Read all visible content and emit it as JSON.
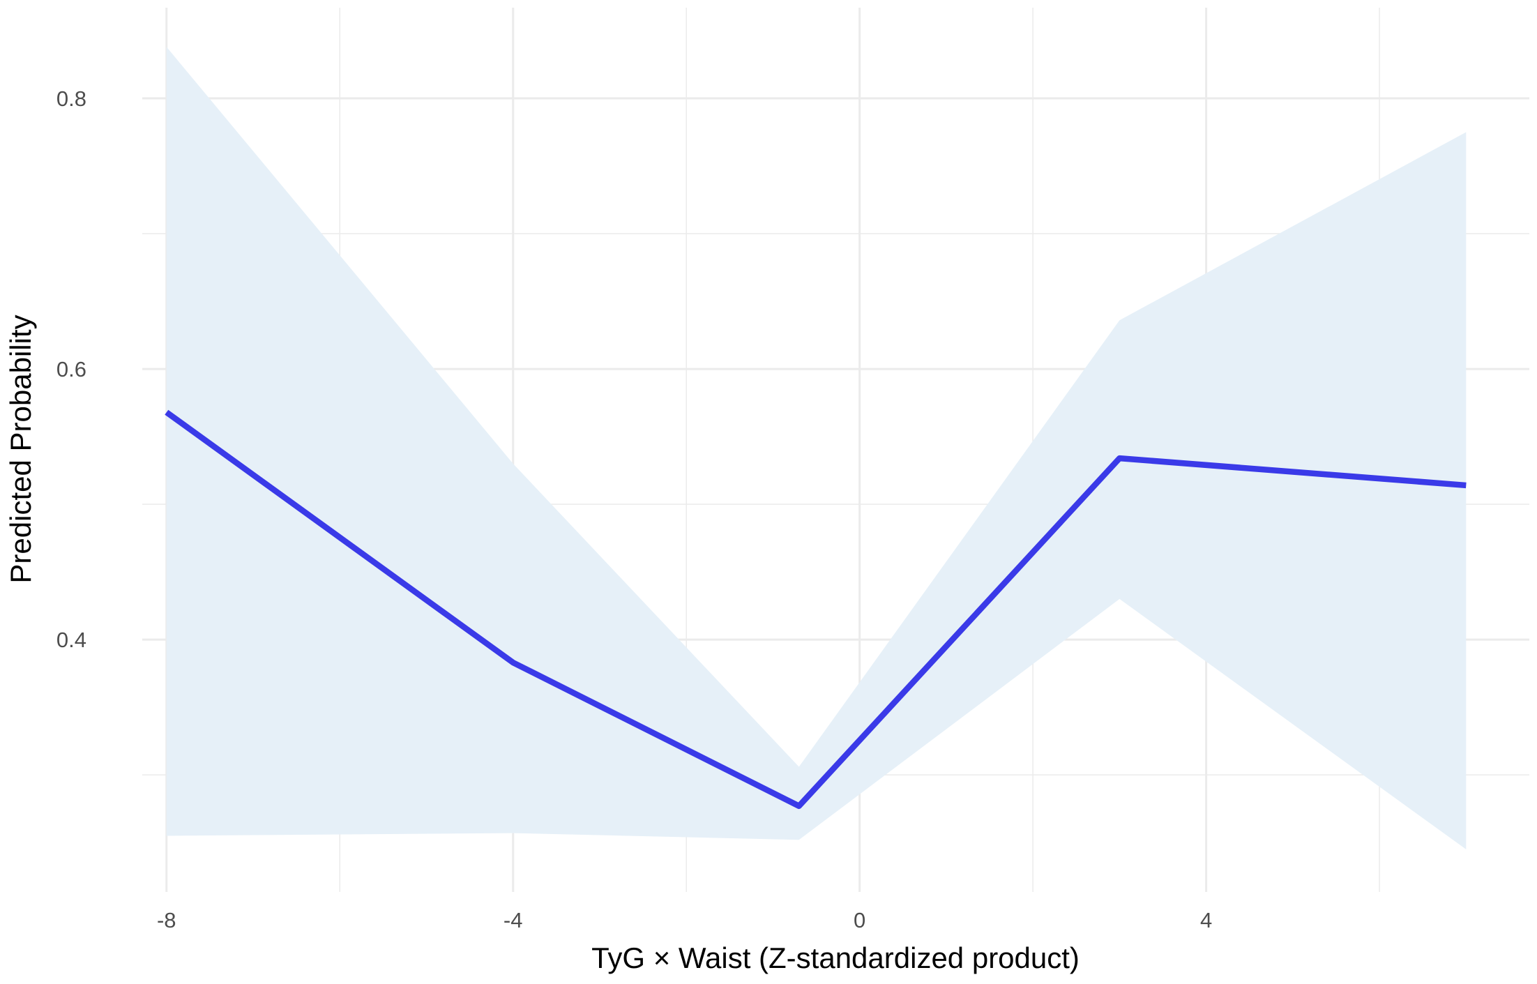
{
  "chart_data": {
    "type": "line",
    "x_label": "TyG × Waist (Z-standardized product)",
    "y_label": "Predicted Probability",
    "x": [
      -8,
      -4,
      -0.7,
      3,
      7
    ],
    "values": [
      0.568,
      0.383,
      0.277,
      0.534,
      0.514
    ],
    "ci_lower": [
      0.255,
      0.257,
      0.252,
      0.43,
      0.245
    ],
    "ci_upper": [
      0.838,
      0.53,
      0.306,
      0.636,
      0.775
    ],
    "color": "#3a3ae8",
    "ribbon_color": "#e6f0f8",
    "xlim": [
      -8.28,
      7.73
    ],
    "ylim": [
      0.2135,
      0.867
    ],
    "xticks": [
      -8,
      -4,
      0,
      4
    ],
    "yticks": [
      0.4,
      0.6,
      0.8
    ],
    "x_minor_grid": [
      -6,
      -2,
      2,
      6
    ],
    "y_minor_grid": [
      0.3,
      0.5,
      0.7
    ],
    "grid": true
  }
}
